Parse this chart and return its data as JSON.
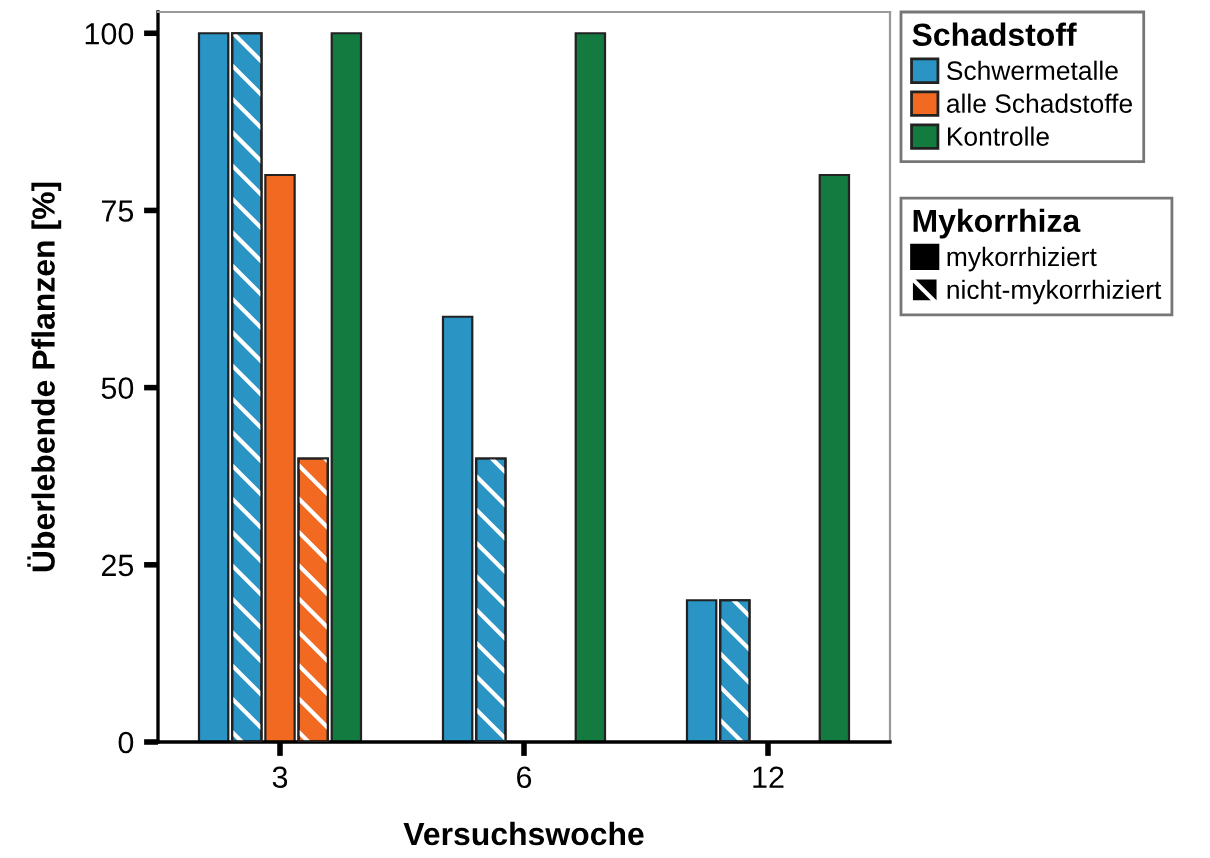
{
  "chart_data": {
    "type": "bar",
    "xlabel": "Versuchswoche",
    "ylabel": "Überlebende Pflanzen [%]",
    "categories": [
      "3",
      "6",
      "12"
    ],
    "legend_title": "Schadstoff",
    "annotations": [
      "Mykorrhiza",
      "mykorrhiziert",
      "nicht-mykorrhiziert"
    ],
    "series": [
      {
        "name": "Schwermetalle",
        "color": "#2a94c4",
        "values": [
          100,
          60,
          20
        ]
      },
      {
        "color": "#2a94c4",
        "values": [
          100,
          40,
          20
        ]
      },
      {
        "name": "alle Schadstoffe",
        "color": "#f26a22",
        "values": [
          80,
          null,
          null
        ]
      },
      {
        "color": "#f26a22",
        "values": [
          40,
          null,
          null
        ]
      },
      {
        "name": "Kontrolle",
        "color": "#137b3f",
        "values": [
          100,
          100,
          80
        ]
      }
    ],
    "ylim": [
      0,
      103
    ],
    "yticks": [
      0,
      25,
      50,
      75,
      100
    ],
    "grid": false,
    "legend": "top right"
  }
}
